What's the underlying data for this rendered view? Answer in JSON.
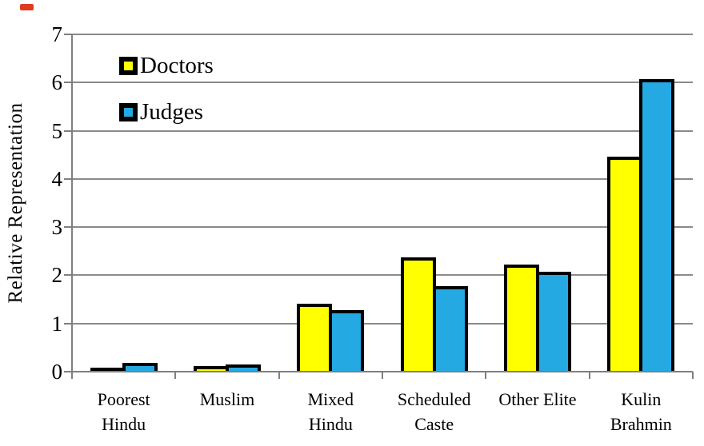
{
  "page": {
    "background": "#ffffff",
    "corner_mark_color": "#e13b1d"
  },
  "chart_data": {
    "type": "bar",
    "title": "",
    "xlabel": "",
    "ylabel": "Relative Representation",
    "ylim": [
      0,
      7
    ],
    "yticks": [
      0,
      1,
      2,
      3,
      4,
      5,
      6,
      7
    ],
    "grid": "horizontal",
    "gridline_color": "#8a8a8a",
    "axis_color": "#7f7f7f",
    "bar_border_color": "#000000",
    "legend_position": "top-left-inside",
    "categories": [
      "Poorest\nHindu",
      "Muslim",
      "Mixed\nHindu",
      "Scheduled\nCaste",
      "Other Elite",
      "Kulin\nBrahmin"
    ],
    "series": [
      {
        "name": "Doctors",
        "color": "#FFFF00",
        "values": [
          0.08,
          0.12,
          1.41,
          2.38,
          2.22,
          4.46
        ]
      },
      {
        "name": "Judges",
        "color": "#24A9E2",
        "values": [
          0.19,
          0.15,
          1.27,
          1.78,
          2.08,
          6.07
        ]
      }
    ]
  }
}
